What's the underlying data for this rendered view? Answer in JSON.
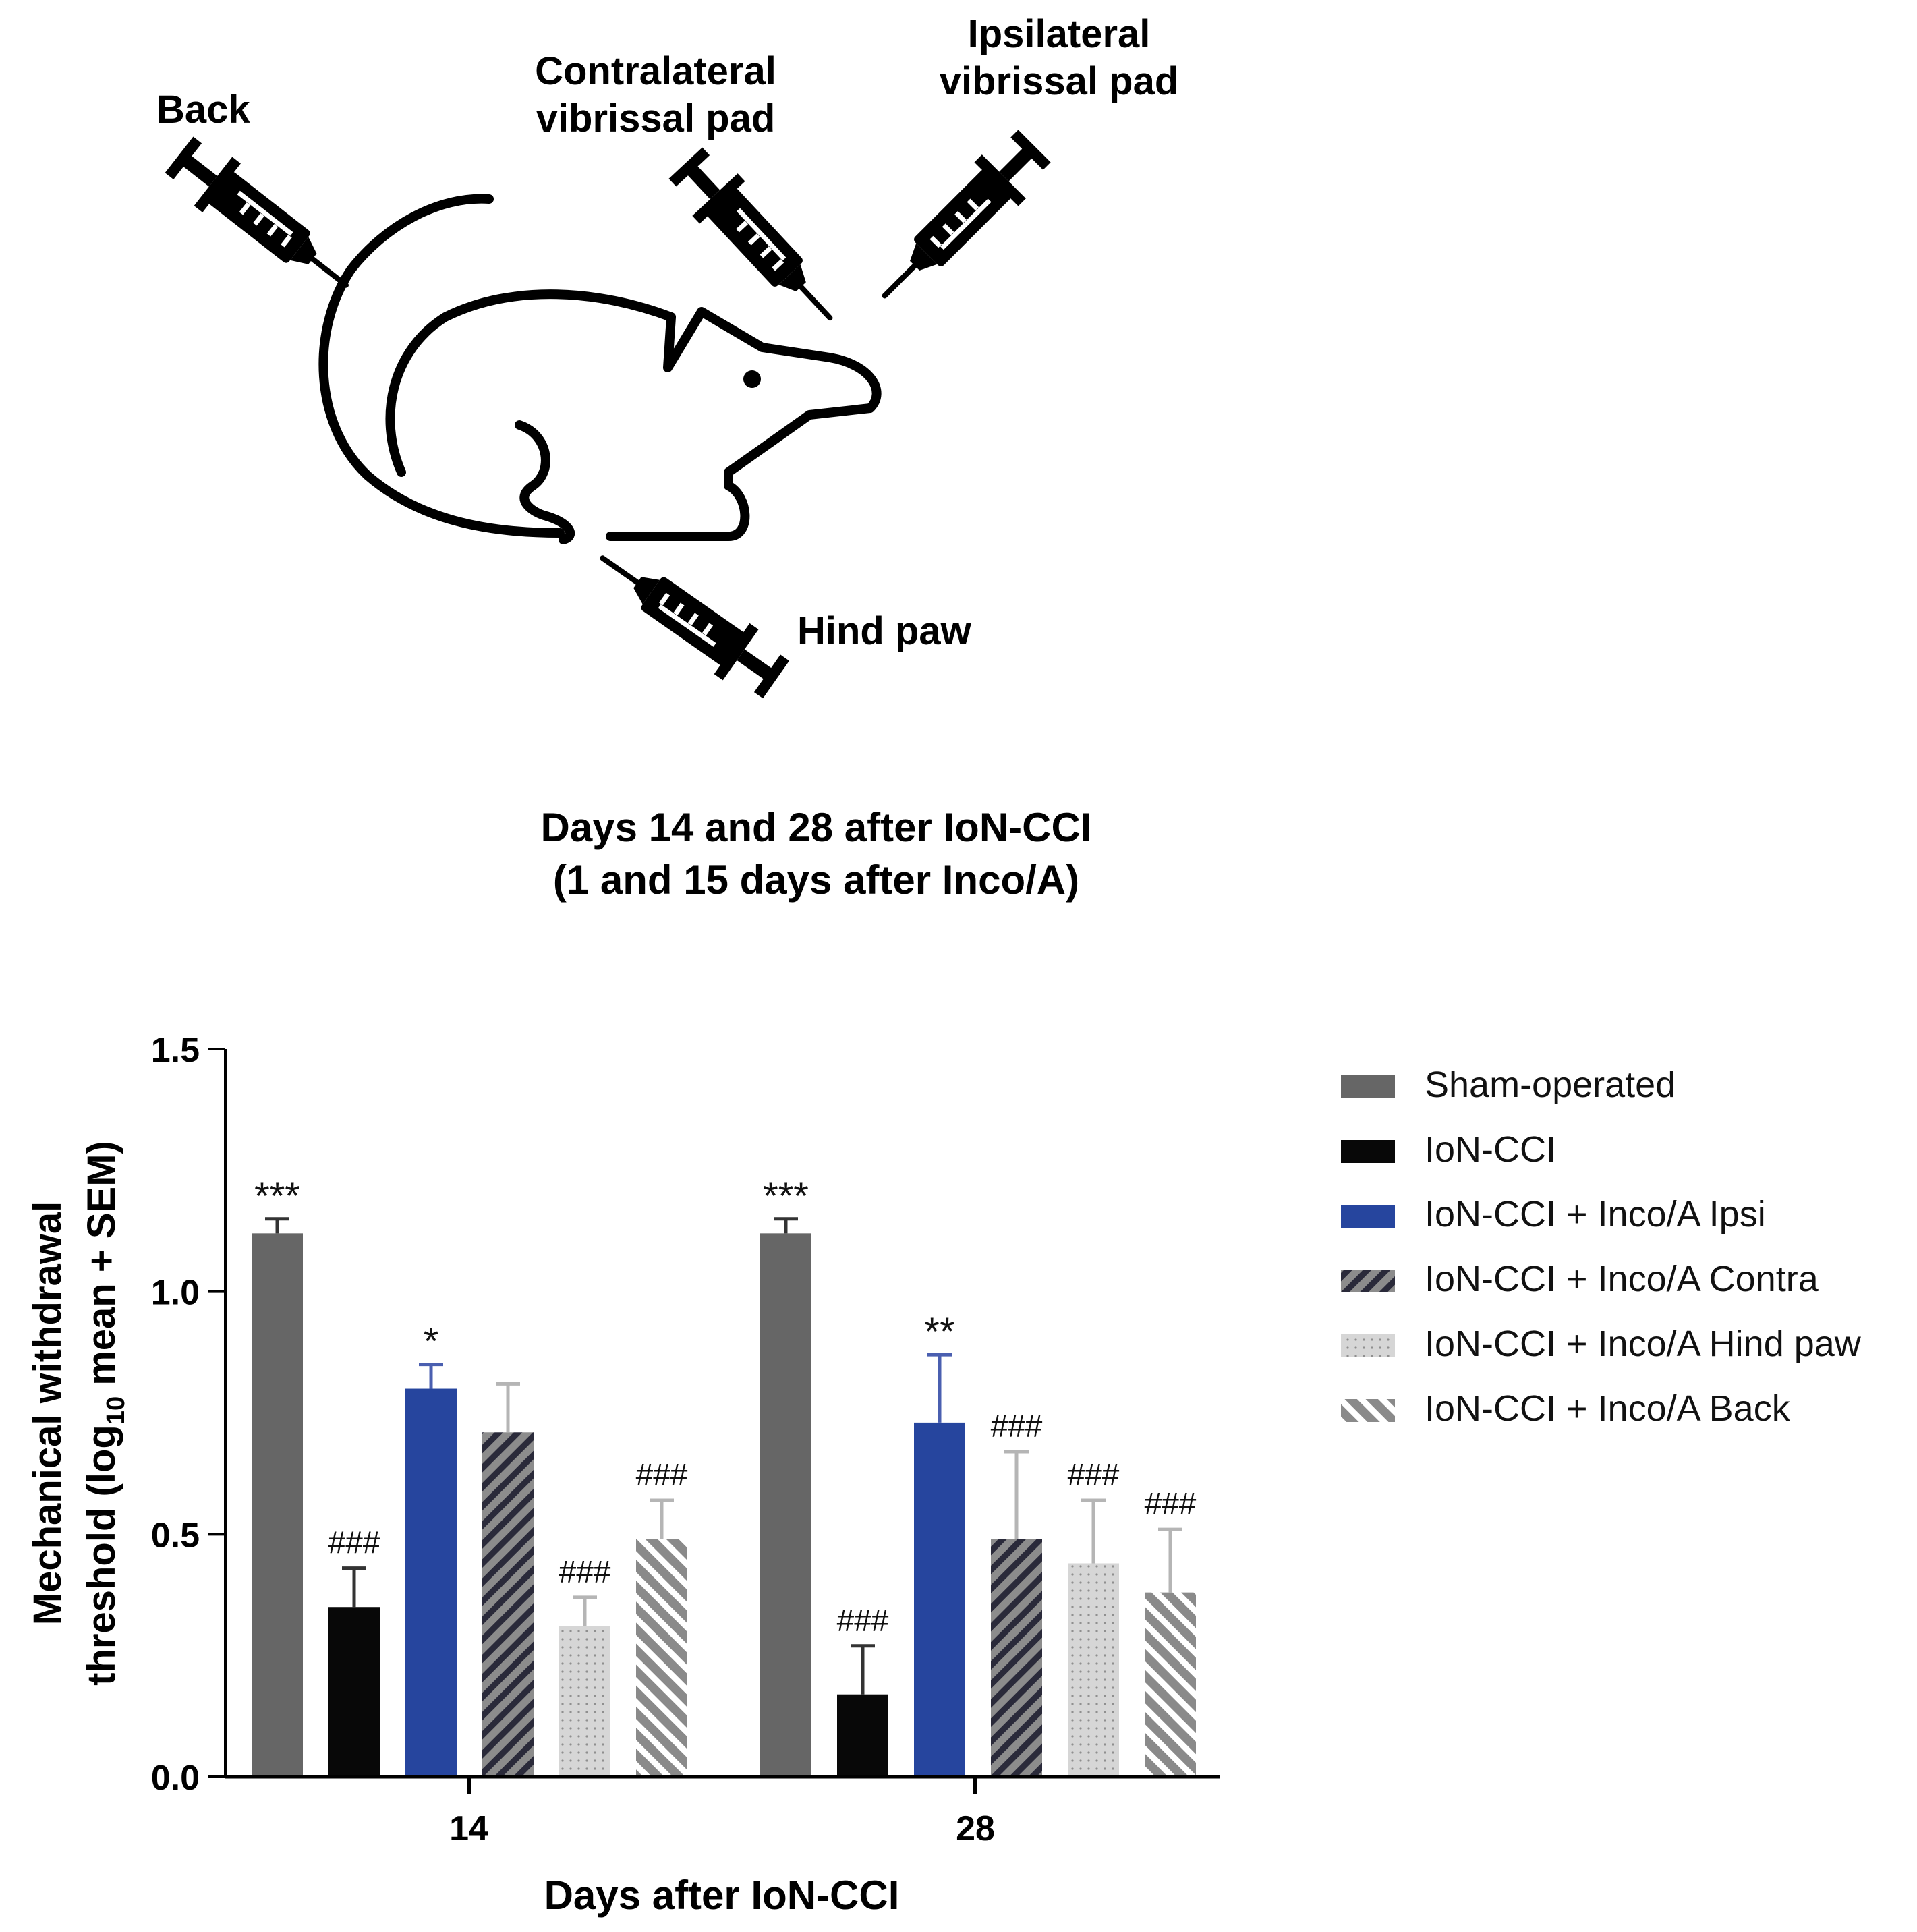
{
  "diagram": {
    "labels": {
      "back": "Back",
      "contra_line1": "Contralateral",
      "contra_line2": "vibrissal pad",
      "ipsi_line1": "Ipsilateral",
      "ipsi_line2": "vibrissal pad",
      "hind_paw": "Hind paw"
    },
    "caption_line1": "Days 14 and 28 after IoN-CCI",
    "caption_line2": "(1 and 15 days after Inco/A)"
  },
  "chart_data": {
    "type": "bar",
    "xlabel": "Days after IoN-CCI",
    "ylabel_line1": "Mechanical withdrawal",
    "ylabel_line2_pre": "threshold (log",
    "ylabel_line2_sub": "10",
    "ylabel_line2_post": " mean + SEM)",
    "ylim": [
      0,
      1.5
    ],
    "yticks": [
      "0.0",
      "0.5",
      "1.0",
      "1.5"
    ],
    "grid": false,
    "legend_position": "right",
    "categories": [
      "14",
      "28"
    ],
    "series": [
      {
        "name": "Sham-operated",
        "color": "#666666",
        "pattern": "solid",
        "values": [
          1.12,
          1.12
        ],
        "sem": [
          0.03,
          0.03
        ],
        "annotations": [
          "***",
          "***"
        ]
      },
      {
        "name": "IoN-CCI",
        "color": "#080808",
        "pattern": "solid",
        "values": [
          0.35,
          0.17
        ],
        "sem": [
          0.08,
          0.1
        ],
        "annotations": [
          "###",
          "###"
        ]
      },
      {
        "name": "IoN-CCI + Inco/A Ipsi",
        "color": "#26459e",
        "pattern": "solid",
        "values": [
          0.8,
          0.73
        ],
        "sem": [
          0.05,
          0.14
        ],
        "annotations": [
          "*",
          "**"
        ]
      },
      {
        "name": "IoN-CCI + Inco/A Contra",
        "color": "#8c8c8c",
        "pattern": "stripes-dark",
        "values": [
          0.71,
          0.49
        ],
        "sem": [
          0.1,
          0.18
        ],
        "annotations": [
          "",
          "###"
        ]
      },
      {
        "name": "IoN-CCI + Inco/A Hind paw",
        "color": "#d6d6d6",
        "pattern": "dots",
        "values": [
          0.31,
          0.44
        ],
        "sem": [
          0.06,
          0.13
        ],
        "annotations": [
          "###",
          "###"
        ]
      },
      {
        "name": "IoN-CCI + Inco/A Back",
        "color": "#8a8a8a",
        "pattern": "stripes-white",
        "values": [
          0.49,
          0.38
        ],
        "sem": [
          0.08,
          0.13
        ],
        "annotations": [
          "###",
          "###"
        ]
      }
    ]
  }
}
